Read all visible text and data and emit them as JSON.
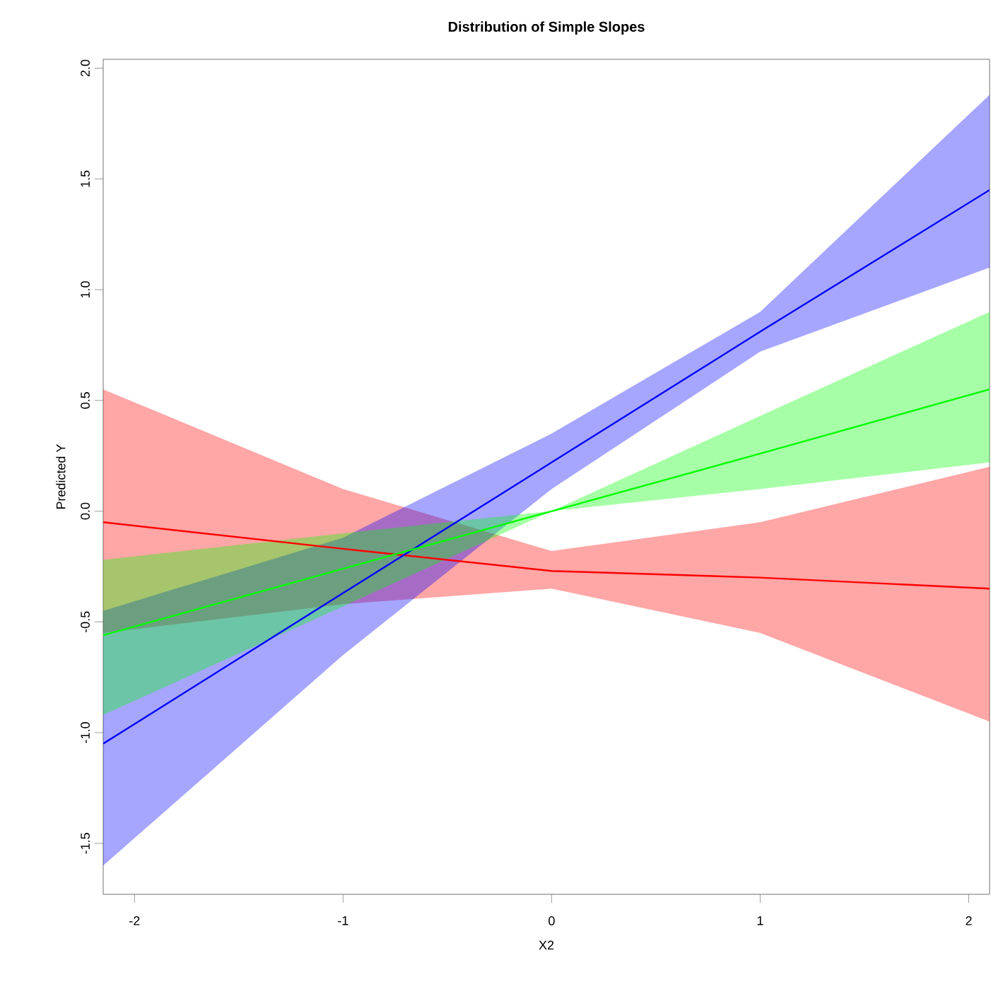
{
  "chart_data": {
    "type": "line",
    "title": "Distribution of Simple Slopes",
    "xlabel": "X2",
    "ylabel": "Predicted Y",
    "xlim": [
      -2.15,
      2.1
    ],
    "ylim": [
      -1.73,
      2.04
    ],
    "xticks": [
      -2,
      -1,
      0,
      1,
      2
    ],
    "yticks": [
      -1.5,
      {
        "value": -1,
        "label": "-1.0"
      },
      -0.5,
      {
        "value": 0,
        "label": "0.0"
      },
      0.5,
      {
        "value": 1,
        "label": "1.0"
      },
      1.5,
      {
        "value": 2,
        "label": "2.0"
      }
    ],
    "x": [
      -2.15,
      -1,
      0,
      1,
      2.1
    ],
    "series": [
      {
        "color": "#ff0000",
        "values": [
          -0.05,
          -0.17,
          -0.27,
          -0.3,
          -0.35
        ],
        "lower": [
          -0.55,
          -0.42,
          -0.35,
          -0.55,
          -0.95
        ],
        "upper": [
          0.55,
          0.1,
          -0.18,
          -0.05,
          0.2
        ]
      },
      {
        "color": "#0000ff",
        "values": [
          -1.05,
          -0.37,
          0.22,
          0.81,
          1.45
        ],
        "lower": [
          -1.6,
          -0.65,
          0.1,
          0.72,
          1.1
        ],
        "upper": [
          -0.45,
          -0.12,
          0.35,
          0.9,
          1.88
        ]
      },
      {
        "color": "#00ff00",
        "values": [
          -0.56,
          -0.26,
          0,
          0.26,
          0.55
        ],
        "lower": [
          -0.92,
          -0.43,
          0,
          0.1,
          0.22
        ],
        "upper": [
          -0.22,
          -0.1,
          0,
          0.43,
          0.9
        ]
      }
    ]
  }
}
